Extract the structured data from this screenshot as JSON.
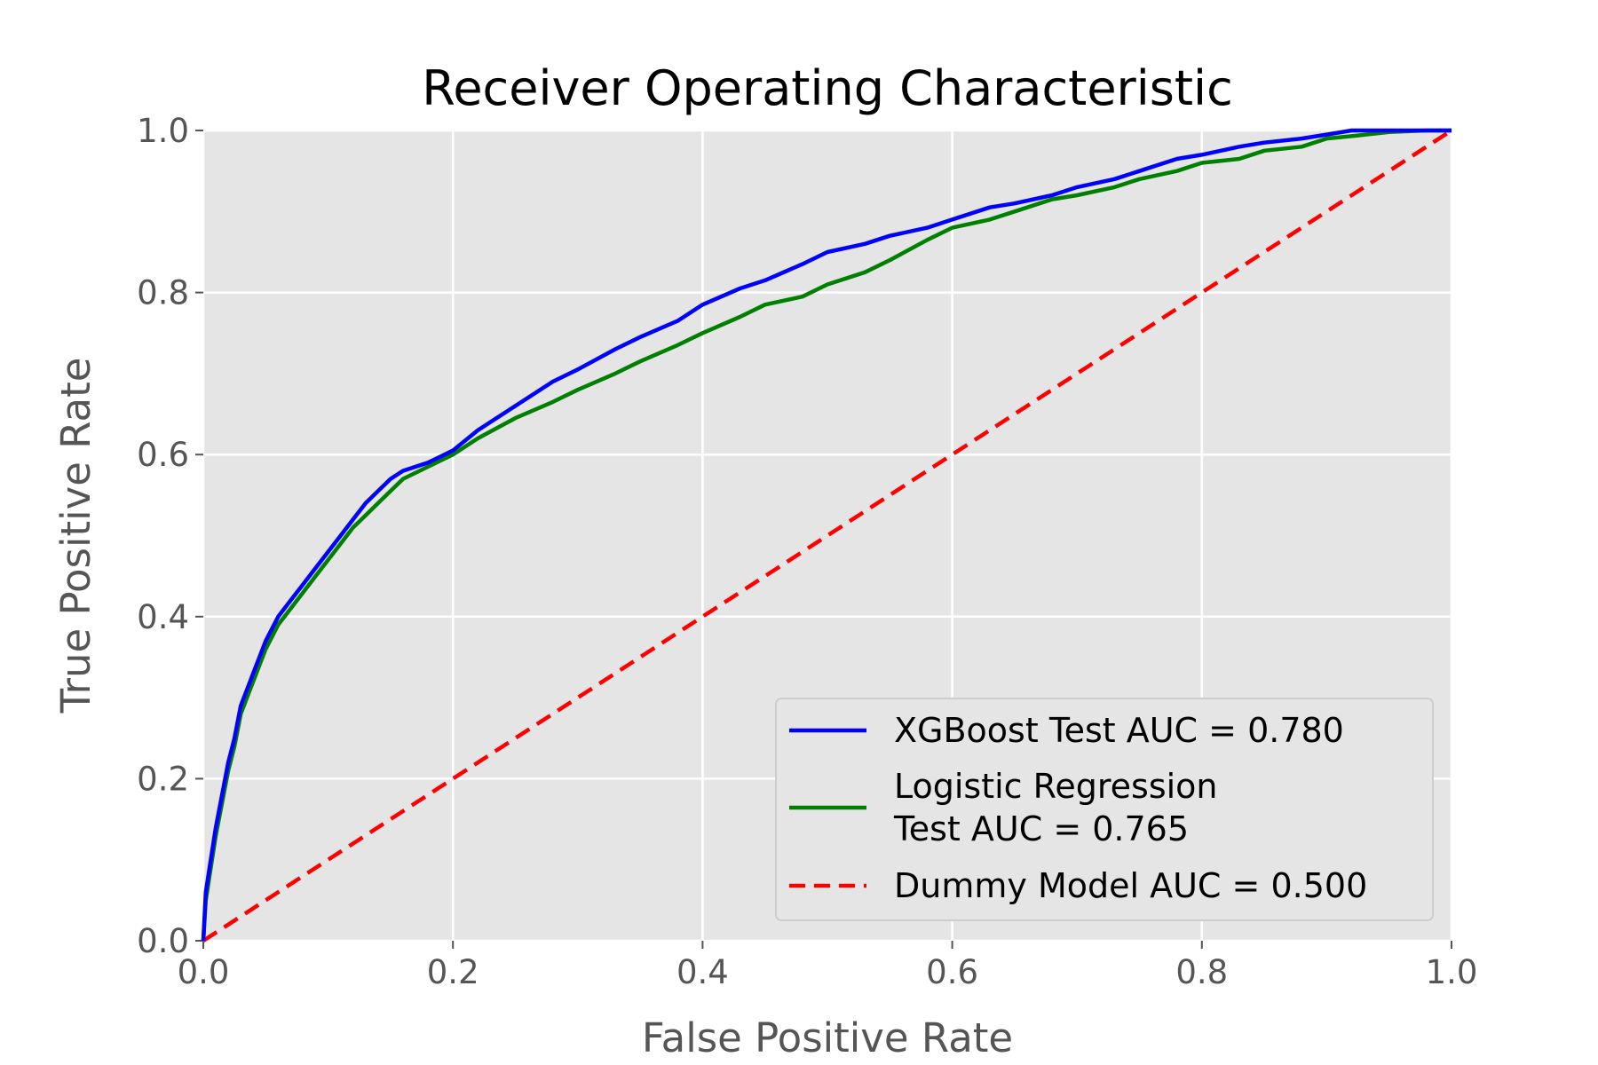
{
  "chart_data": {
    "type": "line",
    "title": "Receiver Operating Characteristic",
    "xlabel": "False Positive Rate",
    "ylabel": "True Positive Rate",
    "xlim": [
      0,
      1
    ],
    "ylim": [
      0,
      1
    ],
    "xticks": [
      "0.0",
      "0.2",
      "0.4",
      "0.6",
      "0.8",
      "1.0"
    ],
    "yticks": [
      "0.0",
      "0.2",
      "0.4",
      "0.6",
      "0.8",
      "1.0"
    ],
    "grid": true,
    "legend_position": "lower-right",
    "series": [
      {
        "name": "XGBoost Test AUC = 0.780",
        "legend_lines": [
          "XGBoost Test AUC = 0.780"
        ],
        "color": "#0000ff",
        "style": "solid",
        "x": [
          0,
          0.002,
          0.005,
          0.01,
          0.015,
          0.02,
          0.025,
          0.03,
          0.035,
          0.04,
          0.05,
          0.06,
          0.07,
          0.08,
          0.09,
          0.1,
          0.11,
          0.12,
          0.13,
          0.14,
          0.15,
          0.16,
          0.18,
          0.2,
          0.22,
          0.25,
          0.28,
          0.3,
          0.33,
          0.35,
          0.38,
          0.4,
          0.43,
          0.45,
          0.48,
          0.5,
          0.53,
          0.55,
          0.58,
          0.6,
          0.63,
          0.65,
          0.68,
          0.7,
          0.73,
          0.75,
          0.78,
          0.8,
          0.83,
          0.85,
          0.88,
          0.9,
          0.92,
          0.95,
          0.98,
          1.0
        ],
        "y": [
          0,
          0.06,
          0.09,
          0.14,
          0.18,
          0.22,
          0.25,
          0.29,
          0.31,
          0.33,
          0.37,
          0.4,
          0.42,
          0.44,
          0.46,
          0.48,
          0.5,
          0.52,
          0.54,
          0.555,
          0.57,
          0.58,
          0.59,
          0.605,
          0.63,
          0.66,
          0.69,
          0.705,
          0.73,
          0.745,
          0.765,
          0.785,
          0.805,
          0.815,
          0.835,
          0.85,
          0.86,
          0.87,
          0.88,
          0.89,
          0.905,
          0.91,
          0.92,
          0.93,
          0.94,
          0.95,
          0.965,
          0.97,
          0.98,
          0.985,
          0.99,
          0.995,
          1.0,
          1.0,
          1.0,
          1.0
        ]
      },
      {
        "name": "Logistic Regression Test AUC = 0.765",
        "legend_lines": [
          "Logistic Regression",
          "Test AUC = 0.765"
        ],
        "color": "#008000",
        "style": "solid",
        "x": [
          0,
          0.002,
          0.005,
          0.01,
          0.015,
          0.02,
          0.025,
          0.03,
          0.035,
          0.04,
          0.05,
          0.06,
          0.07,
          0.08,
          0.09,
          0.1,
          0.11,
          0.12,
          0.13,
          0.14,
          0.15,
          0.16,
          0.18,
          0.2,
          0.22,
          0.25,
          0.28,
          0.3,
          0.33,
          0.35,
          0.38,
          0.4,
          0.43,
          0.45,
          0.48,
          0.5,
          0.53,
          0.55,
          0.58,
          0.6,
          0.63,
          0.65,
          0.68,
          0.7,
          0.73,
          0.75,
          0.78,
          0.8,
          0.83,
          0.85,
          0.88,
          0.9,
          0.92,
          0.95,
          0.98,
          1.0
        ],
        "y": [
          0,
          0.05,
          0.08,
          0.13,
          0.17,
          0.21,
          0.24,
          0.28,
          0.3,
          0.32,
          0.36,
          0.39,
          0.41,
          0.43,
          0.45,
          0.47,
          0.49,
          0.51,
          0.525,
          0.54,
          0.555,
          0.57,
          0.585,
          0.6,
          0.62,
          0.645,
          0.665,
          0.68,
          0.7,
          0.715,
          0.735,
          0.75,
          0.77,
          0.785,
          0.795,
          0.81,
          0.825,
          0.84,
          0.865,
          0.88,
          0.89,
          0.9,
          0.915,
          0.92,
          0.93,
          0.94,
          0.95,
          0.96,
          0.965,
          0.975,
          0.98,
          0.99,
          0.993,
          0.998,
          1.0,
          1.0
        ]
      },
      {
        "name": "Dummy Model AUC = 0.500",
        "legend_lines": [
          "Dummy Model AUC = 0.500"
        ],
        "color": "#ff0000",
        "style": "dashed",
        "x": [
          0,
          1
        ],
        "y": [
          0,
          1
        ]
      }
    ]
  }
}
